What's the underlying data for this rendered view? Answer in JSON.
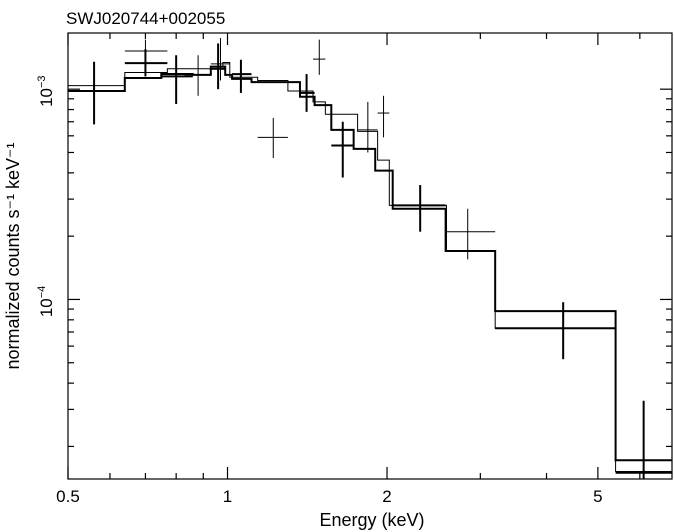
{
  "chart_data": {
    "type": "scatter",
    "title": "SWJ020744+002055",
    "xlabel": "Energy (keV)",
    "ylabel": "normalized counts s⁻¹ keV⁻¹",
    "x_scale": "log",
    "y_scale": "log",
    "xlim": [
      0.5,
      6.9
    ],
    "ylim": [
      1.4e-05,
      0.00185
    ],
    "x_ticks": [
      {
        "value": 0.5,
        "label": "0.5"
      },
      {
        "value": 1,
        "label": "1"
      },
      {
        "value": 2,
        "label": "2"
      },
      {
        "value": 5,
        "label": "5"
      }
    ],
    "y_ticks": [
      {
        "value": 0.0001,
        "base": "10",
        "exp": "−4"
      },
      {
        "value": 0.001,
        "base": "10",
        "exp": "−3"
      }
    ],
    "grid": false,
    "series": [
      {
        "line": "thick",
        "points": [
          {
            "x": 0.56,
            "xlo": 0.5,
            "xhi": 0.64,
            "y": 0.00098,
            "ylo": 0.00068,
            "yhi": 0.00135
          },
          {
            "x": 0.7,
            "xlo": 0.64,
            "xhi": 0.77,
            "y": 0.00133,
            "ylo": 0.00115,
            "yhi": 0.00155
          },
          {
            "x": 0.8,
            "xlo": 0.75,
            "xhi": 0.86,
            "y": 0.00115,
            "ylo": 0.00085,
            "yhi": 0.00145
          },
          {
            "x": 0.96,
            "xlo": 0.93,
            "xhi": 0.99,
            "y": 0.00125,
            "ylo": 0.001,
            "yhi": 0.00165
          },
          {
            "x": 1.06,
            "xlo": 1.02,
            "xhi": 1.11,
            "y": 0.00118,
            "ylo": 0.00096,
            "yhi": 0.00138
          },
          {
            "x": 1.41,
            "xlo": 1.37,
            "xhi": 1.46,
            "y": 0.00096,
            "ylo": 0.00078,
            "yhi": 0.00118
          },
          {
            "x": 1.65,
            "xlo": 1.57,
            "xhi": 1.73,
            "y": 0.00054,
            "ylo": 0.00038,
            "yhi": 0.0007
          },
          {
            "x": 2.31,
            "xlo": 2.05,
            "xhi": 2.58,
            "y": 0.00028,
            "ylo": 0.00021,
            "yhi": 0.00035
          },
          {
            "x": 4.3,
            "xlo": 3.2,
            "xhi": 5.4,
            "y": 7.3e-05,
            "ylo": 5.2e-05,
            "yhi": 9.7e-05
          },
          {
            "x": 6.1,
            "xlo": 5.4,
            "xhi": 6.9,
            "y": 1.5e-05,
            "ylo": 1.4e-05,
            "yhi": 3.3e-05
          }
        ],
        "model_steps": [
          [
            0.5,
            0.64,
            0.00098
          ],
          [
            0.64,
            0.75,
            0.00113
          ],
          [
            0.75,
            0.86,
            0.00118
          ],
          [
            0.86,
            0.93,
            0.00117
          ],
          [
            0.93,
            0.99,
            0.00128
          ],
          [
            0.99,
            1.02,
            0.00117
          ],
          [
            1.02,
            1.11,
            0.00112
          ],
          [
            1.11,
            1.37,
            0.00108
          ],
          [
            1.37,
            1.46,
            0.00092
          ],
          [
            1.46,
            1.57,
            0.00084
          ],
          [
            1.57,
            1.73,
            0.00064
          ],
          [
            1.73,
            1.9,
            0.00052
          ],
          [
            1.9,
            2.05,
            0.00041
          ],
          [
            2.05,
            2.58,
            0.00027
          ],
          [
            2.58,
            3.2,
            0.00017
          ],
          [
            3.2,
            5.4,
            8.8e-05
          ],
          [
            5.4,
            6.9,
            1.72e-05
          ]
        ]
      },
      {
        "line": "thin",
        "points": [
          {
            "x": 0.7,
            "xlo": 0.64,
            "xhi": 0.77,
            "y": 0.00152,
            "ylo": 0.00133,
            "yhi": 0.00172
          },
          {
            "x": 0.88,
            "xlo": 0.83,
            "xhi": 0.93,
            "y": 0.00117,
            "ylo": 0.00093,
            "yhi": 0.00145
          },
          {
            "x": 0.97,
            "xlo": 0.93,
            "xhi": 1.01,
            "y": 0.00132,
            "ylo": 0.0011,
            "yhi": 0.00175
          },
          {
            "x": 1.22,
            "xlo": 1.14,
            "xhi": 1.3,
            "y": 0.00059,
            "ylo": 0.00047,
            "yhi": 0.00073
          },
          {
            "x": 1.49,
            "xlo": 1.45,
            "xhi": 1.53,
            "y": 0.00139,
            "ylo": 0.00117,
            "yhi": 0.00172
          },
          {
            "x": 1.84,
            "xlo": 1.76,
            "xhi": 1.92,
            "y": 0.00064,
            "ylo": 0.0005,
            "yhi": 0.00087
          },
          {
            "x": 1.97,
            "xlo": 1.92,
            "xhi": 2.02,
            "y": 0.00077,
            "ylo": 0.00059,
            "yhi": 0.00093
          },
          {
            "x": 2.84,
            "xlo": 2.59,
            "xhi": 3.2,
            "y": 0.00021,
            "ylo": 0.000155,
            "yhi": 0.00027
          }
        ],
        "model_steps": [
          [
            0.5,
            0.64,
            0.00104
          ],
          [
            0.64,
            0.77,
            0.0012
          ],
          [
            0.77,
            0.93,
            0.00125
          ],
          [
            0.93,
            0.98,
            0.00128
          ],
          [
            0.98,
            1.01,
            0.00134
          ],
          [
            1.01,
            1.14,
            0.00114
          ],
          [
            1.14,
            1.3,
            0.0011
          ],
          [
            1.3,
            1.45,
            0.00098
          ],
          [
            1.45,
            1.53,
            0.00087
          ],
          [
            1.53,
            1.76,
            0.00076
          ],
          [
            1.76,
            1.92,
            0.00063
          ],
          [
            1.92,
            2.02,
            0.00046
          ],
          [
            2.02,
            2.59,
            0.00028
          ],
          [
            2.59,
            3.2,
            0.00017
          ],
          [
            3.2,
            5.4,
            7.3e-05
          ],
          [
            5.4,
            6.9,
            1.52e-05
          ]
        ]
      }
    ]
  }
}
